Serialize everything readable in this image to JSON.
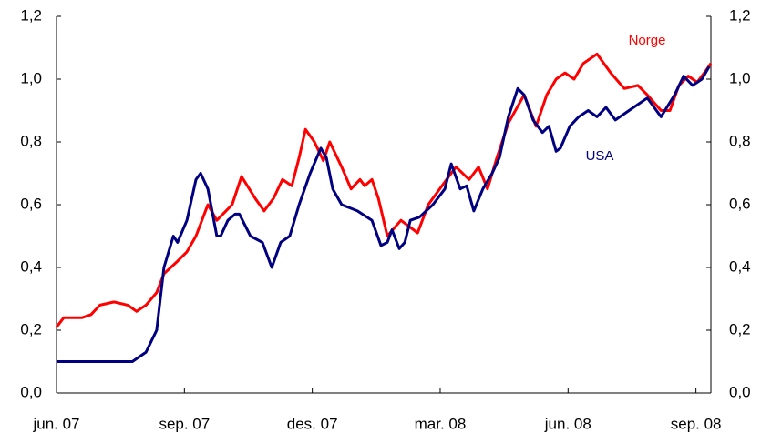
{
  "chart_data": {
    "type": "line",
    "xlim": [
      0,
      15.35
    ],
    "xticks": [
      {
        "value": 0,
        "label": "jun. 07"
      },
      {
        "value": 3,
        "label": "sep. 07"
      },
      {
        "value": 6,
        "label": "des. 07"
      },
      {
        "value": 9,
        "label": "mar. 08"
      },
      {
        "value": 12,
        "label": "jun. 08"
      },
      {
        "value": 15,
        "label": "sep. 08"
      }
    ],
    "ylim": [
      0,
      1.2
    ],
    "yticks": [
      {
        "value": 0,
        "label": "0,0"
      },
      {
        "value": 0.2,
        "label": "0,2"
      },
      {
        "value": 0.4,
        "label": "0,4"
      },
      {
        "value": 0.6,
        "label": "0,6"
      },
      {
        "value": 0.8,
        "label": "0,8"
      },
      {
        "value": 1.0,
        "label": "1,0"
      },
      {
        "value": 1.2,
        "label": "1,2"
      }
    ],
    "y2lim": [
      0,
      1.2
    ],
    "y2ticks": [
      {
        "value": 0,
        "label": "0,0"
      },
      {
        "value": 0.2,
        "label": "0,2"
      },
      {
        "value": 0.4,
        "label": "0,4"
      },
      {
        "value": 0.6,
        "label": "0,6"
      },
      {
        "value": 0.8,
        "label": "0,8"
      },
      {
        "value": 1.0,
        "label": "1,0"
      },
      {
        "value": 1.2,
        "label": "1,2"
      }
    ],
    "series": [
      {
        "name": "Norge",
        "color": "#ff0000",
        "x": [
          0,
          0.17,
          0.6,
          0.81,
          1.02,
          1.35,
          1.67,
          1.88,
          2.1,
          2.35,
          2.52,
          2.84,
          3.06,
          3.27,
          3.55,
          3.76,
          4.12,
          4.34,
          4.66,
          4.87,
          5.09,
          5.3,
          5.52,
          5.69,
          5.84,
          6.05,
          6.26,
          6.41,
          6.69,
          6.91,
          7.12,
          7.23,
          7.4,
          7.55,
          7.76,
          8.08,
          8.47,
          8.72,
          9.15,
          9.37,
          9.68,
          9.9,
          10.11,
          10.33,
          10.6,
          10.97,
          11.25,
          11.5,
          11.72,
          11.93,
          12.14,
          12.36,
          12.68,
          13.0,
          13.32,
          13.64,
          13.86,
          14.18,
          14.39,
          14.6,
          14.82,
          15.03,
          15.25,
          15.35
        ],
        "values": [
          0.21,
          0.24,
          0.24,
          0.25,
          0.28,
          0.29,
          0.28,
          0.26,
          0.28,
          0.32,
          0.38,
          0.42,
          0.45,
          0.5,
          0.6,
          0.55,
          0.6,
          0.69,
          0.62,
          0.58,
          0.62,
          0.68,
          0.66,
          0.75,
          0.84,
          0.8,
          0.74,
          0.8,
          0.72,
          0.65,
          0.68,
          0.66,
          0.68,
          0.62,
          0.5,
          0.55,
          0.51,
          0.6,
          0.68,
          0.72,
          0.68,
          0.72,
          0.65,
          0.75,
          0.86,
          0.95,
          0.85,
          0.95,
          1.0,
          1.02,
          1.0,
          1.05,
          1.08,
          1.02,
          0.97,
          0.98,
          0.95,
          0.9,
          0.9,
          0.98,
          1.01,
          0.99,
          1.03,
          1.05
        ]
      },
      {
        "name": "USA",
        "color": "#000080",
        "x": [
          0,
          1.78,
          2.1,
          2.35,
          2.52,
          2.74,
          2.84,
          3.06,
          3.27,
          3.38,
          3.55,
          3.76,
          3.85,
          4.02,
          4.19,
          4.29,
          4.55,
          4.83,
          5.05,
          5.26,
          5.47,
          5.69,
          5.95,
          6.2,
          6.33,
          6.48,
          6.69,
          7.06,
          7.4,
          7.61,
          7.76,
          7.87,
          8.04,
          8.17,
          8.3,
          8.51,
          8.83,
          9.11,
          9.26,
          9.47,
          9.62,
          9.79,
          10.0,
          10.22,
          10.39,
          10.6,
          10.82,
          10.97,
          11.18,
          11.4,
          11.55,
          11.72,
          11.82,
          12.04,
          12.25,
          12.47,
          12.68,
          12.89,
          13.11,
          13.43,
          13.86,
          14.18,
          14.5,
          14.71,
          14.92,
          15.14,
          15.31
        ],
        "values": [
          0.1,
          0.1,
          0.13,
          0.2,
          0.4,
          0.5,
          0.48,
          0.55,
          0.68,
          0.7,
          0.65,
          0.5,
          0.5,
          0.55,
          0.57,
          0.57,
          0.5,
          0.48,
          0.4,
          0.48,
          0.5,
          0.6,
          0.7,
          0.78,
          0.75,
          0.65,
          0.6,
          0.58,
          0.55,
          0.47,
          0.48,
          0.52,
          0.46,
          0.48,
          0.55,
          0.56,
          0.6,
          0.65,
          0.73,
          0.65,
          0.66,
          0.58,
          0.65,
          0.7,
          0.75,
          0.88,
          0.97,
          0.95,
          0.87,
          0.83,
          0.85,
          0.77,
          0.78,
          0.85,
          0.88,
          0.9,
          0.88,
          0.91,
          0.87,
          0.9,
          0.94,
          0.88,
          0.95,
          1.01,
          0.98,
          1.0,
          1.04
        ]
      }
    ]
  }
}
